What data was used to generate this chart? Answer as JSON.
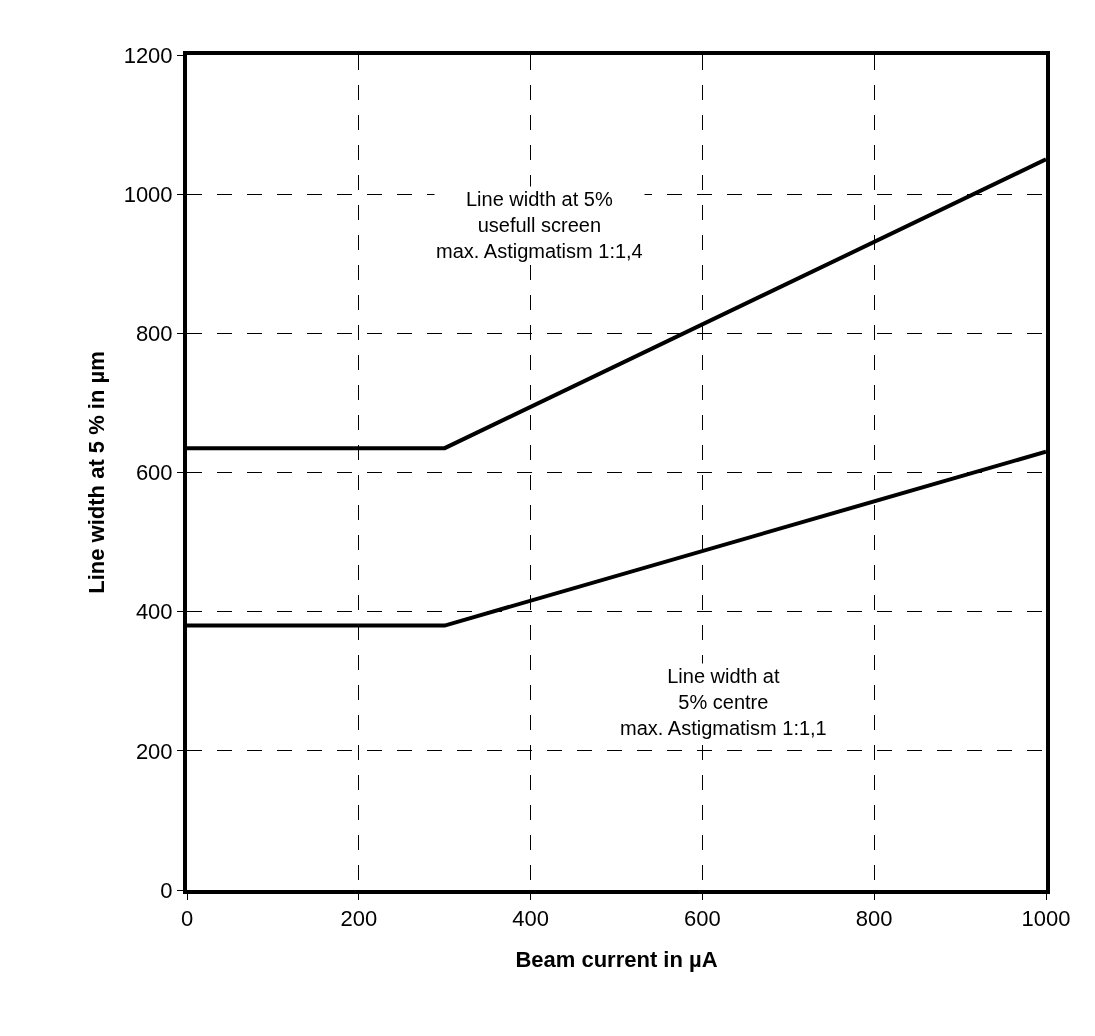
{
  "chart_data": {
    "type": "line",
    "xlabel": "Beam current in µA",
    "ylabel": "Line width at 5 % in µm",
    "xlim": [
      0,
      1000
    ],
    "xticks": [
      0,
      200,
      400,
      600,
      800,
      1000
    ],
    "ylim": [
      0,
      1200
    ],
    "yticks": [
      0,
      200,
      400,
      600,
      800,
      1000,
      1200
    ],
    "grid": true,
    "marker": "none",
    "line_style": "solid",
    "series": [
      {
        "color": "#000000",
        "x": [
          0,
          300,
          1000
        ],
        "values": [
          635,
          635,
          1050
        ]
      },
      {
        "color": "#000000",
        "x": [
          0,
          300,
          1000
        ],
        "values": [
          380,
          380,
          630
        ]
      }
    ],
    "annotations": [
      "Line width at 5%\nusefull screen\nmax. Astigmatism 1:1,4",
      "Line width at\n5% centre\nmax. Astigmatism 1:1,1"
    ]
  }
}
